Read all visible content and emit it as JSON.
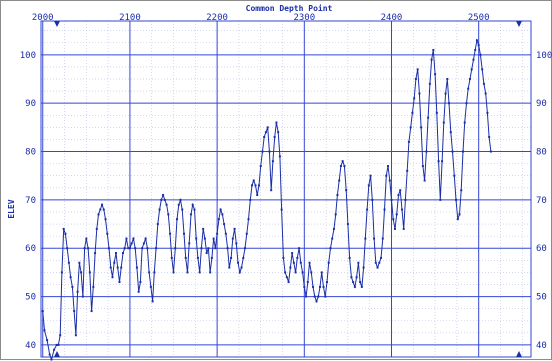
{
  "chart_data": {
    "type": "line",
    "title": "Common Depth Point",
    "xlabel": "Common Depth Point",
    "ylabel": "ELEV",
    "xlim": [
      1998,
      2560
    ],
    "ylim": [
      37.5,
      107
    ],
    "x_ticks": [
      2000,
      2100,
      2200,
      2300,
      2400,
      2500
    ],
    "y_ticks": [
      40,
      50,
      60,
      70,
      80,
      90,
      100
    ],
    "grid": true,
    "colors": {
      "line": "#1a2ea8",
      "grid_major": "#3446d6",
      "grid_minor": "#b8bde8",
      "text": "#1a2ea8"
    },
    "series": [
      {
        "points": [
          [
            2000,
            47
          ],
          [
            2002,
            43
          ],
          [
            2005,
            41
          ],
          [
            2008,
            38
          ],
          [
            2010,
            37
          ],
          [
            2013,
            39
          ],
          [
            2016,
            40
          ],
          [
            2018,
            40
          ],
          [
            2020,
            42
          ],
          [
            2022,
            55
          ],
          [
            2024,
            64
          ],
          [
            2026,
            63
          ],
          [
            2028,
            60
          ],
          [
            2030,
            57
          ],
          [
            2032,
            54
          ],
          [
            2034,
            52
          ],
          [
            2036,
            47
          ],
          [
            2038,
            42
          ],
          [
            2040,
            51
          ],
          [
            2042,
            57
          ],
          [
            2044,
            55
          ],
          [
            2046,
            50
          ],
          [
            2048,
            60
          ],
          [
            2050,
            62
          ],
          [
            2052,
            60
          ],
          [
            2054,
            55
          ],
          [
            2056,
            47
          ],
          [
            2058,
            52
          ],
          [
            2060,
            59
          ],
          [
            2062,
            64
          ],
          [
            2064,
            67
          ],
          [
            2066,
            68
          ],
          [
            2068,
            69
          ],
          [
            2070,
            68
          ],
          [
            2072,
            66
          ],
          [
            2074,
            63
          ],
          [
            2076,
            60
          ],
          [
            2078,
            56
          ],
          [
            2080,
            54
          ],
          [
            2082,
            57
          ],
          [
            2084,
            59
          ],
          [
            2086,
            56
          ],
          [
            2088,
            53
          ],
          [
            2090,
            56
          ],
          [
            2092,
            59
          ],
          [
            2094,
            60
          ],
          [
            2096,
            62
          ],
          [
            2098,
            60
          ],
          [
            2100,
            60
          ],
          [
            2102,
            61
          ],
          [
            2104,
            62
          ],
          [
            2106,
            60
          ],
          [
            2108,
            56
          ],
          [
            2110,
            51
          ],
          [
            2112,
            53
          ],
          [
            2114,
            60
          ],
          [
            2116,
            61
          ],
          [
            2118,
            62
          ],
          [
            2120,
            60
          ],
          [
            2122,
            55
          ],
          [
            2124,
            52
          ],
          [
            2126,
            49
          ],
          [
            2128,
            55
          ],
          [
            2130,
            60
          ],
          [
            2132,
            65
          ],
          [
            2134,
            68
          ],
          [
            2136,
            70
          ],
          [
            2138,
            71
          ],
          [
            2140,
            70
          ],
          [
            2142,
            69
          ],
          [
            2144,
            67
          ],
          [
            2146,
            63
          ],
          [
            2148,
            58
          ],
          [
            2150,
            55
          ],
          [
            2152,
            60
          ],
          [
            2154,
            66
          ],
          [
            2156,
            69
          ],
          [
            2158,
            70
          ],
          [
            2160,
            68
          ],
          [
            2162,
            63
          ],
          [
            2164,
            58
          ],
          [
            2166,
            55
          ],
          [
            2168,
            61
          ],
          [
            2170,
            67
          ],
          [
            2172,
            69
          ],
          [
            2174,
            68
          ],
          [
            2176,
            62
          ],
          [
            2178,
            58
          ],
          [
            2180,
            55
          ],
          [
            2182,
            60
          ],
          [
            2184,
            64
          ],
          [
            2186,
            62
          ],
          [
            2188,
            59
          ],
          [
            2190,
            60
          ],
          [
            2192,
            55
          ],
          [
            2194,
            58
          ],
          [
            2196,
            62
          ],
          [
            2198,
            60
          ],
          [
            2200,
            63
          ],
          [
            2202,
            66
          ],
          [
            2204,
            68
          ],
          [
            2206,
            67
          ],
          [
            2208,
            65
          ],
          [
            2210,
            63
          ],
          [
            2212,
            60
          ],
          [
            2214,
            56
          ],
          [
            2216,
            58
          ],
          [
            2218,
            62
          ],
          [
            2220,
            64
          ],
          [
            2222,
            61
          ],
          [
            2224,
            57
          ],
          [
            2226,
            55
          ],
          [
            2228,
            56
          ],
          [
            2230,
            58
          ],
          [
            2232,
            60
          ],
          [
            2234,
            63
          ],
          [
            2236,
            66
          ],
          [
            2238,
            70
          ],
          [
            2240,
            73
          ],
          [
            2242,
            74
          ],
          [
            2244,
            73
          ],
          [
            2246,
            71
          ],
          [
            2248,
            73
          ],
          [
            2250,
            77
          ],
          [
            2252,
            80
          ],
          [
            2254,
            83
          ],
          [
            2256,
            84
          ],
          [
            2258,
            85
          ],
          [
            2260,
            80
          ],
          [
            2262,
            72
          ],
          [
            2264,
            78
          ],
          [
            2266,
            83
          ],
          [
            2268,
            86
          ],
          [
            2270,
            84
          ],
          [
            2272,
            79
          ],
          [
            2274,
            68
          ],
          [
            2276,
            58
          ],
          [
            2278,
            55
          ],
          [
            2280,
            54
          ],
          [
            2282,
            53
          ],
          [
            2284,
            56
          ],
          [
            2286,
            59
          ],
          [
            2288,
            57
          ],
          [
            2290,
            55
          ],
          [
            2292,
            58
          ],
          [
            2294,
            60
          ],
          [
            2296,
            57
          ],
          [
            2298,
            55
          ],
          [
            2300,
            52
          ],
          [
            2302,
            50
          ],
          [
            2304,
            53
          ],
          [
            2306,
            57
          ],
          [
            2308,
            55
          ],
          [
            2310,
            52
          ],
          [
            2312,
            50
          ],
          [
            2314,
            49
          ],
          [
            2316,
            50
          ],
          [
            2318,
            52
          ],
          [
            2320,
            55
          ],
          [
            2322,
            52
          ],
          [
            2324,
            50
          ],
          [
            2326,
            53
          ],
          [
            2328,
            57
          ],
          [
            2330,
            60
          ],
          [
            2332,
            62
          ],
          [
            2334,
            64
          ],
          [
            2336,
            67
          ],
          [
            2338,
            71
          ],
          [
            2340,
            74
          ],
          [
            2342,
            77
          ],
          [
            2344,
            78
          ],
          [
            2346,
            77
          ],
          [
            2348,
            72
          ],
          [
            2350,
            65
          ],
          [
            2352,
            58
          ],
          [
            2354,
            54
          ],
          [
            2356,
            53
          ],
          [
            2358,
            52
          ],
          [
            2360,
            54
          ],
          [
            2362,
            57
          ],
          [
            2364,
            53
          ],
          [
            2366,
            52
          ],
          [
            2368,
            56
          ],
          [
            2370,
            62
          ],
          [
            2372,
            68
          ],
          [
            2374,
            73
          ],
          [
            2376,
            75
          ],
          [
            2378,
            70
          ],
          [
            2380,
            62
          ],
          [
            2382,
            57
          ],
          [
            2384,
            56
          ],
          [
            2386,
            57
          ],
          [
            2388,
            58
          ],
          [
            2390,
            62
          ],
          [
            2392,
            68
          ],
          [
            2394,
            75
          ],
          [
            2396,
            77
          ],
          [
            2398,
            74
          ],
          [
            2400,
            70
          ],
          [
            2402,
            66
          ],
          [
            2404,
            64
          ],
          [
            2406,
            67
          ],
          [
            2408,
            71
          ],
          [
            2410,
            72
          ],
          [
            2412,
            68
          ],
          [
            2414,
            64
          ],
          [
            2416,
            70
          ],
          [
            2418,
            76
          ],
          [
            2420,
            82
          ],
          [
            2422,
            85
          ],
          [
            2424,
            88
          ],
          [
            2426,
            91
          ],
          [
            2428,
            95
          ],
          [
            2430,
            97
          ],
          [
            2432,
            92
          ],
          [
            2434,
            85
          ],
          [
            2436,
            77
          ],
          [
            2438,
            74
          ],
          [
            2440,
            80
          ],
          [
            2442,
            87
          ],
          [
            2444,
            94
          ],
          [
            2446,
            99
          ],
          [
            2448,
            101
          ],
          [
            2450,
            96
          ],
          [
            2452,
            88
          ],
          [
            2454,
            78
          ],
          [
            2456,
            70
          ],
          [
            2458,
            78
          ],
          [
            2460,
            86
          ],
          [
            2462,
            92
          ],
          [
            2464,
            95
          ],
          [
            2466,
            90
          ],
          [
            2468,
            84
          ],
          [
            2470,
            80
          ],
          [
            2472,
            75
          ],
          [
            2474,
            70
          ],
          [
            2476,
            66
          ],
          [
            2478,
            67
          ],
          [
            2480,
            72
          ],
          [
            2482,
            80
          ],
          [
            2484,
            86
          ],
          [
            2486,
            90
          ],
          [
            2488,
            93
          ],
          [
            2490,
            95
          ],
          [
            2492,
            97
          ],
          [
            2494,
            99
          ],
          [
            2496,
            101
          ],
          [
            2498,
            103
          ],
          [
            2500,
            102
          ],
          [
            2502,
            100
          ],
          [
            2504,
            97
          ],
          [
            2506,
            94
          ],
          [
            2508,
            92
          ],
          [
            2510,
            88
          ],
          [
            2512,
            83
          ],
          [
            2514,
            80
          ]
        ]
      }
    ]
  }
}
